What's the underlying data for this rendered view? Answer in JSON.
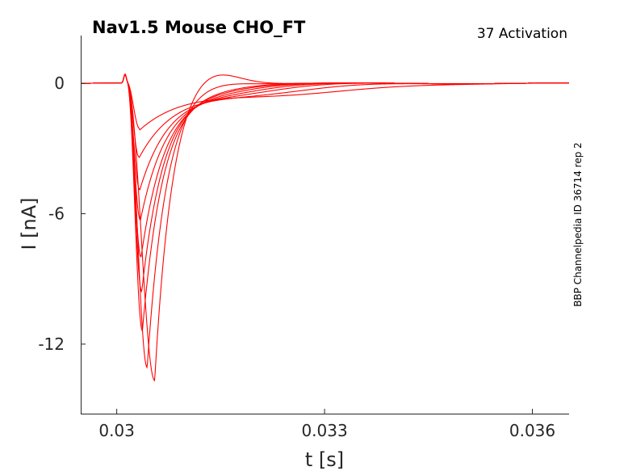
{
  "chart_data": {
    "type": "line",
    "title": "Nav1.5  Mouse  CHO_FT",
    "subtitle": "37  Activation",
    "side_note": "BBP Channelpedia ID 36714 rep 2",
    "xlabel": "t [s]",
    "ylabel": "I [nA]",
    "xlim": [
      0.02948,
      0.03653
    ],
    "ylim": [
      -15.2,
      2.2
    ],
    "x_ticks": [
      0.03,
      0.033,
      0.036
    ],
    "x_tick_labels": [
      "0.03",
      "0.033",
      "0.036"
    ],
    "y_ticks": [
      0,
      -6,
      -12
    ],
    "y_tick_labels": [
      "0",
      "-6",
      "-12"
    ],
    "grid": false,
    "legend": "none",
    "line_color": "#ff0000",
    "artifact": {
      "x": 0.03012,
      "y": 0.4
    },
    "series": [
      {
        "peak_x": 0.03033,
        "peak_y": -2.1,
        "tau_decay": 0.0007,
        "overshoot": -0.45
      },
      {
        "peak_x": 0.03032,
        "peak_y": -3.4,
        "tau_decay": 0.00055,
        "overshoot": -0.4
      },
      {
        "peak_x": 0.03033,
        "peak_y": -4.9,
        "tau_decay": 0.00045,
        "overshoot": -0.35
      },
      {
        "peak_x": 0.03034,
        "peak_y": -6.3,
        "tau_decay": 0.0004,
        "overshoot": -0.3
      },
      {
        "peak_x": 0.03035,
        "peak_y": -8.0,
        "tau_decay": 0.00036,
        "overshoot": -0.25
      },
      {
        "peak_x": 0.03036,
        "peak_y": -9.6,
        "tau_decay": 0.00033,
        "overshoot": -0.2
      },
      {
        "peak_x": 0.03037,
        "peak_y": -11.4,
        "tau_decay": 0.00031,
        "overshoot": -0.15
      },
      {
        "peak_x": 0.03044,
        "peak_y": -13.1,
        "tau_decay": 0.00028,
        "overshoot": 0.2
      },
      {
        "peak_x": 0.03055,
        "peak_y": -13.7,
        "tau_decay": 0.00025,
        "overshoot": 0.8
      }
    ]
  }
}
